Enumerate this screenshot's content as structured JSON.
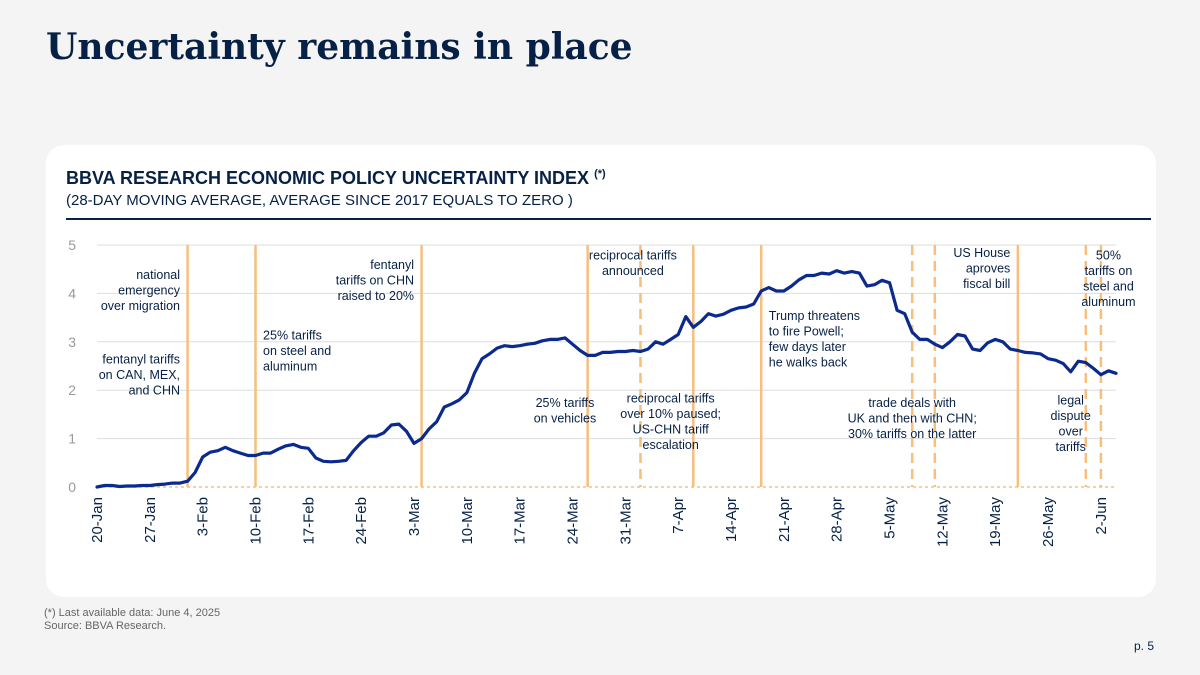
{
  "slide": {
    "title": "Uncertainty remains in place",
    "footnote_1": "(*) Last available data: June 4, 2025",
    "footnote_2": "Source: BBVA Research.",
    "page_number": "p. 5"
  },
  "colors": {
    "title": "#072146",
    "line": "#0a2a8e",
    "event_lines": "#f6bf7e",
    "grid": "#dddddd",
    "background": "#f4f4f4",
    "card": "#ffffff"
  },
  "chart_data": {
    "type": "line",
    "title": "BBVA RESEARCH ECONOMIC POLICY UNCERTAINTY INDEX",
    "title_marker": "(*)",
    "subtitle": "(28-DAY MOVING AVERAGE, AVERAGE SINCE 2017 EQUALS TO ZERO )",
    "ylim": [
      0,
      5
    ],
    "yticks": [
      "0",
      "1",
      "2",
      "3",
      "4",
      "5"
    ],
    "grid": true,
    "x_range": [
      "2025-01-20",
      "2025-06-04"
    ],
    "xtick_labels": [
      {
        "date": "2025-01-20",
        "label": "20-Jan"
      },
      {
        "date": "2025-01-27",
        "label": "27-Jan"
      },
      {
        "date": "2025-02-03",
        "label": "3-Feb"
      },
      {
        "date": "2025-02-10",
        "label": "10-Feb"
      },
      {
        "date": "2025-02-17",
        "label": "17-Feb"
      },
      {
        "date": "2025-02-24",
        "label": "24-Feb"
      },
      {
        "date": "2025-03-03",
        "label": "3-Mar"
      },
      {
        "date": "2025-03-10",
        "label": "10-Mar"
      },
      {
        "date": "2025-03-17",
        "label": "17-Mar"
      },
      {
        "date": "2025-03-24",
        "label": "24-Mar"
      },
      {
        "date": "2025-03-31",
        "label": "31-Mar"
      },
      {
        "date": "2025-04-07",
        "label": "7-Apr"
      },
      {
        "date": "2025-04-14",
        "label": "14-Apr"
      },
      {
        "date": "2025-04-21",
        "label": "21-Apr"
      },
      {
        "date": "2025-04-28",
        "label": "28-Apr"
      },
      {
        "date": "2025-05-05",
        "label": "5-May"
      },
      {
        "date": "2025-05-12",
        "label": "12-May"
      },
      {
        "date": "2025-05-19",
        "label": "19-May"
      },
      {
        "date": "2025-05-26",
        "label": "26-May"
      },
      {
        "date": "2025-06-02",
        "label": "2-Jun"
      }
    ],
    "series": [
      {
        "points": [
          [
            "2025-01-20",
            0.0
          ],
          [
            "2025-01-21",
            0.03
          ],
          [
            "2025-01-22",
            0.03
          ],
          [
            "2025-01-23",
            0.01
          ],
          [
            "2025-01-24",
            0.02
          ],
          [
            "2025-01-25",
            0.02
          ],
          [
            "2025-01-26",
            0.03
          ],
          [
            "2025-01-27",
            0.03
          ],
          [
            "2025-01-28",
            0.05
          ],
          [
            "2025-01-29",
            0.06
          ],
          [
            "2025-01-30",
            0.08
          ],
          [
            "2025-01-31",
            0.08
          ],
          [
            "2025-02-01",
            0.12
          ],
          [
            "2025-02-02",
            0.3
          ],
          [
            "2025-02-03",
            0.62
          ],
          [
            "2025-02-04",
            0.72
          ],
          [
            "2025-02-05",
            0.75
          ],
          [
            "2025-02-06",
            0.82
          ],
          [
            "2025-02-07",
            0.75
          ],
          [
            "2025-02-08",
            0.7
          ],
          [
            "2025-02-09",
            0.65
          ],
          [
            "2025-02-10",
            0.65
          ],
          [
            "2025-02-11",
            0.7
          ],
          [
            "2025-02-12",
            0.7
          ],
          [
            "2025-02-13",
            0.78
          ],
          [
            "2025-02-14",
            0.85
          ],
          [
            "2025-02-15",
            0.88
          ],
          [
            "2025-02-16",
            0.82
          ],
          [
            "2025-02-17",
            0.8
          ],
          [
            "2025-02-18",
            0.6
          ],
          [
            "2025-02-19",
            0.53
          ],
          [
            "2025-02-20",
            0.52
          ],
          [
            "2025-02-21",
            0.53
          ],
          [
            "2025-02-22",
            0.55
          ],
          [
            "2025-02-23",
            0.75
          ],
          [
            "2025-02-24",
            0.92
          ],
          [
            "2025-02-25",
            1.05
          ],
          [
            "2025-02-26",
            1.05
          ],
          [
            "2025-02-27",
            1.12
          ],
          [
            "2025-02-28",
            1.28
          ],
          [
            "2025-03-01",
            1.3
          ],
          [
            "2025-03-02",
            1.15
          ],
          [
            "2025-03-03",
            0.9
          ],
          [
            "2025-03-04",
            1.0
          ],
          [
            "2025-03-05",
            1.2
          ],
          [
            "2025-03-06",
            1.35
          ],
          [
            "2025-03-07",
            1.65
          ],
          [
            "2025-03-08",
            1.72
          ],
          [
            "2025-03-09",
            1.8
          ],
          [
            "2025-03-10",
            1.95
          ],
          [
            "2025-03-11",
            2.35
          ],
          [
            "2025-03-12",
            2.65
          ],
          [
            "2025-03-13",
            2.75
          ],
          [
            "2025-03-14",
            2.87
          ],
          [
            "2025-03-15",
            2.92
          ],
          [
            "2025-03-16",
            2.9
          ],
          [
            "2025-03-17",
            2.92
          ],
          [
            "2025-03-18",
            2.95
          ],
          [
            "2025-03-19",
            2.97
          ],
          [
            "2025-03-20",
            3.02
          ],
          [
            "2025-03-21",
            3.05
          ],
          [
            "2025-03-22",
            3.05
          ],
          [
            "2025-03-23",
            3.08
          ],
          [
            "2025-03-24",
            2.95
          ],
          [
            "2025-03-25",
            2.82
          ],
          [
            "2025-03-26",
            2.72
          ],
          [
            "2025-03-27",
            2.72
          ],
          [
            "2025-03-28",
            2.78
          ],
          [
            "2025-03-29",
            2.78
          ],
          [
            "2025-03-30",
            2.8
          ],
          [
            "2025-03-31",
            2.8
          ],
          [
            "2025-04-01",
            2.82
          ],
          [
            "2025-04-02",
            2.8
          ],
          [
            "2025-04-03",
            2.85
          ],
          [
            "2025-04-04",
            3.0
          ],
          [
            "2025-04-05",
            2.95
          ],
          [
            "2025-04-06",
            3.05
          ],
          [
            "2025-04-07",
            3.15
          ],
          [
            "2025-04-08",
            3.52
          ],
          [
            "2025-04-09",
            3.3
          ],
          [
            "2025-04-10",
            3.42
          ],
          [
            "2025-04-11",
            3.58
          ],
          [
            "2025-04-12",
            3.53
          ],
          [
            "2025-04-13",
            3.57
          ],
          [
            "2025-04-14",
            3.65
          ],
          [
            "2025-04-15",
            3.7
          ],
          [
            "2025-04-16",
            3.72
          ],
          [
            "2025-04-17",
            3.78
          ],
          [
            "2025-04-18",
            4.05
          ],
          [
            "2025-04-19",
            4.12
          ],
          [
            "2025-04-20",
            4.05
          ],
          [
            "2025-04-21",
            4.05
          ],
          [
            "2025-04-22",
            4.15
          ],
          [
            "2025-04-23",
            4.28
          ],
          [
            "2025-04-24",
            4.37
          ],
          [
            "2025-04-25",
            4.37
          ],
          [
            "2025-04-26",
            4.42
          ],
          [
            "2025-04-27",
            4.4
          ],
          [
            "2025-04-28",
            4.47
          ],
          [
            "2025-04-29",
            4.42
          ],
          [
            "2025-04-30",
            4.45
          ],
          [
            "2025-05-01",
            4.42
          ],
          [
            "2025-05-02",
            4.15
          ],
          [
            "2025-05-03",
            4.18
          ],
          [
            "2025-05-04",
            4.27
          ],
          [
            "2025-05-05",
            4.22
          ],
          [
            "2025-05-06",
            3.65
          ],
          [
            "2025-05-07",
            3.58
          ],
          [
            "2025-05-08",
            3.2
          ],
          [
            "2025-05-09",
            3.05
          ],
          [
            "2025-05-10",
            3.05
          ],
          [
            "2025-05-11",
            2.95
          ],
          [
            "2025-05-12",
            2.88
          ],
          [
            "2025-05-13",
            3.0
          ],
          [
            "2025-05-14",
            3.15
          ],
          [
            "2025-05-15",
            3.12
          ],
          [
            "2025-05-16",
            2.85
          ],
          [
            "2025-05-17",
            2.82
          ],
          [
            "2025-05-18",
            2.98
          ],
          [
            "2025-05-19",
            3.05
          ],
          [
            "2025-05-20",
            3.0
          ],
          [
            "2025-05-21",
            2.85
          ],
          [
            "2025-05-22",
            2.82
          ],
          [
            "2025-05-23",
            2.78
          ],
          [
            "2025-05-24",
            2.77
          ],
          [
            "2025-05-25",
            2.75
          ],
          [
            "2025-05-26",
            2.65
          ],
          [
            "2025-05-27",
            2.62
          ],
          [
            "2025-05-28",
            2.55
          ],
          [
            "2025-05-29",
            2.38
          ],
          [
            "2025-05-30",
            2.6
          ],
          [
            "2025-05-31",
            2.57
          ],
          [
            "2025-06-01",
            2.45
          ],
          [
            "2025-06-02",
            2.32
          ],
          [
            "2025-06-03",
            2.4
          ],
          [
            "2025-06-04",
            2.35
          ]
        ]
      }
    ],
    "event_lines": [
      {
        "date": "2025-02-01",
        "style": "solid"
      },
      {
        "date": "2025-02-10",
        "style": "solid"
      },
      {
        "date": "2025-03-04",
        "style": "solid"
      },
      {
        "date": "2025-03-26",
        "style": "solid"
      },
      {
        "date": "2025-04-02",
        "style": "dashed"
      },
      {
        "date": "2025-04-09",
        "style": "solid"
      },
      {
        "date": "2025-04-18",
        "style": "solid"
      },
      {
        "date": "2025-05-08",
        "style": "dashed"
      },
      {
        "date": "2025-05-11",
        "style": "dashed"
      },
      {
        "date": "2025-05-22",
        "style": "solid"
      },
      {
        "date": "2025-05-31",
        "style": "dashed"
      },
      {
        "date": "2025-06-02",
        "style": "dashed"
      }
    ],
    "annotations": [
      {
        "lines": [
          "national",
          "emergency",
          "over migration"
        ],
        "anchor": "end",
        "date": "2025-01-31",
        "y": 4.3
      },
      {
        "lines": [
          "fentanyl tariffs",
          "on CAN, MEX,",
          "and CHN"
        ],
        "anchor": "end",
        "date": "2025-01-31",
        "y": 2.55
      },
      {
        "lines": [
          "25% tariffs",
          "on steel and",
          "aluminum"
        ],
        "anchor": "start",
        "date": "2025-02-11",
        "y": 3.05
      },
      {
        "lines": [
          "fentanyl",
          "tariffs on CHN",
          "raised to 20%"
        ],
        "anchor": "end",
        "date": "2025-03-03",
        "y": 4.5
      },
      {
        "lines": [
          "25% tariffs",
          "on vehicles"
        ],
        "anchor": "middle",
        "date": "2025-03-23",
        "y": 1.65
      },
      {
        "lines": [
          "reciprocal tariffs",
          "announced"
        ],
        "anchor": "middle",
        "date": "2025-04-01",
        "y": 4.7
      },
      {
        "lines": [
          "reciprocal tariffs",
          "over 10% paused;",
          "US-CHN tariff",
          "escalation"
        ],
        "anchor": "middle",
        "date": "2025-04-06",
        "y": 1.75
      },
      {
        "lines": [
          "Trump threatens",
          "to fire Powell;",
          "few days later",
          "he walks back"
        ],
        "anchor": "start",
        "date": "2025-04-19",
        "y": 3.45
      },
      {
        "lines": [
          "trade deals with",
          "UK and then with CHN;",
          "30% tariffs on the latter"
        ],
        "anchor": "middle",
        "date": "2025-05-08",
        "y": 1.65
      },
      {
        "lines": [
          "US House",
          "aproves",
          "fiscal bill"
        ],
        "anchor": "end",
        "date": "2025-05-21",
        "y": 4.75
      },
      {
        "lines": [
          "legal",
          "dispute",
          "over",
          "tariffs"
        ],
        "anchor": "middle",
        "date": "2025-05-29",
        "y": 1.7
      },
      {
        "lines": [
          "50%",
          "tariffs on",
          "steel and",
          "aluminum"
        ],
        "anchor": "middle",
        "date": "2025-06-03",
        "y": 4.7
      }
    ]
  }
}
